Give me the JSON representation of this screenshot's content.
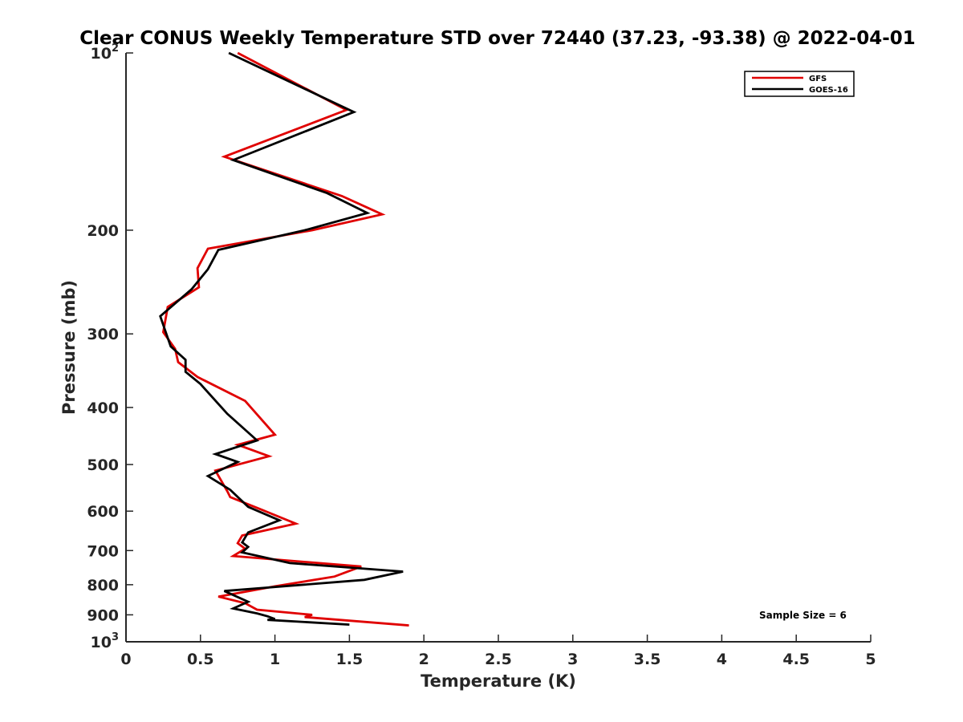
{
  "chart_data": {
    "type": "line",
    "title": "Clear CONUS Weekly Temperature STD over 72440 (37.23, -93.38) @ 2022-04-01",
    "xlabel": "Temperature (K)",
    "ylabel": "Pressure (mb)",
    "xlim": [
      0,
      5
    ],
    "ylim": [
      100,
      1000
    ],
    "y_scale": "log",
    "y_reversed": true,
    "x_ticks": [
      0,
      0.5,
      1,
      1.5,
      2,
      2.5,
      3,
      3.5,
      4,
      4.5,
      5
    ],
    "x_tick_labels": [
      "0",
      "0.5",
      "1",
      "1.5",
      "2",
      "2.5",
      "3",
      "3.5",
      "4",
      "4.5",
      "5"
    ],
    "y_ticks": [
      {
        "value": 100,
        "label": "10",
        "sup": "2"
      },
      {
        "value": 200,
        "label": "200"
      },
      {
        "value": 300,
        "label": "300"
      },
      {
        "value": 400,
        "label": "400"
      },
      {
        "value": 500,
        "label": "500"
      },
      {
        "value": 600,
        "label": "600"
      },
      {
        "value": 700,
        "label": "700"
      },
      {
        "value": 800,
        "label": "800"
      },
      {
        "value": 900,
        "label": "900"
      },
      {
        "value": 1000,
        "label": "10",
        "sup": "3"
      }
    ],
    "grid": false,
    "legend_position": "top-right",
    "annotation": "Sample Size = 6",
    "series": [
      {
        "name": "GFS",
        "color": "#e00000",
        "points": [
          [
            0.75,
            100
          ],
          [
            1.48,
            125
          ],
          [
            0.66,
            150
          ],
          [
            1.45,
            175
          ],
          [
            1.72,
            188
          ],
          [
            1.25,
            200
          ],
          [
            0.55,
            215
          ],
          [
            0.48,
            232
          ],
          [
            0.49,
            250
          ],
          [
            0.28,
            270
          ],
          [
            0.25,
            298
          ],
          [
            0.33,
            318
          ],
          [
            0.35,
            335
          ],
          [
            0.48,
            355
          ],
          [
            0.8,
            390
          ],
          [
            1.0,
            445
          ],
          [
            0.75,
            463
          ],
          [
            0.96,
            484
          ],
          [
            0.6,
            512
          ],
          [
            0.68,
            555
          ],
          [
            0.7,
            568
          ],
          [
            0.92,
            598
          ],
          [
            1.14,
            630
          ],
          [
            0.78,
            660
          ],
          [
            0.75,
            680
          ],
          [
            0.8,
            695
          ],
          [
            0.72,
            715
          ],
          [
            1.58,
            745
          ],
          [
            1.4,
            775
          ],
          [
            1.0,
            805
          ],
          [
            0.62,
            838
          ],
          [
            0.8,
            860
          ],
          [
            0.88,
            882
          ],
          [
            1.25,
            900
          ],
          [
            1.2,
            908
          ],
          [
            1.9,
            938
          ]
        ]
      },
      {
        "name": "GOES-16",
        "color": "#000000",
        "points": [
          [
            0.69,
            100
          ],
          [
            1.53,
            126
          ],
          [
            0.72,
            152
          ],
          [
            1.35,
            173
          ],
          [
            1.62,
            187
          ],
          [
            1.2,
            200
          ],
          [
            0.62,
            216
          ],
          [
            0.55,
            233
          ],
          [
            0.44,
            252
          ],
          [
            0.23,
            280
          ],
          [
            0.3,
            315
          ],
          [
            0.4,
            332
          ],
          [
            0.4,
            348
          ],
          [
            0.5,
            365
          ],
          [
            0.68,
            410
          ],
          [
            0.88,
            455
          ],
          [
            0.6,
            480
          ],
          [
            0.75,
            495
          ],
          [
            0.55,
            523
          ],
          [
            0.7,
            552
          ],
          [
            0.82,
            590
          ],
          [
            1.03,
            622
          ],
          [
            0.82,
            652
          ],
          [
            0.78,
            678
          ],
          [
            0.82,
            690
          ],
          [
            0.78,
            705
          ],
          [
            1.1,
            735
          ],
          [
            1.86,
            760
          ],
          [
            1.6,
            785
          ],
          [
            0.98,
            808
          ],
          [
            0.66,
            820
          ],
          [
            0.82,
            855
          ],
          [
            0.72,
            878
          ],
          [
            0.88,
            895
          ],
          [
            0.95,
            905
          ],
          [
            1.0,
            915
          ],
          [
            0.95,
            918
          ],
          [
            1.5,
            935
          ]
        ]
      }
    ]
  }
}
